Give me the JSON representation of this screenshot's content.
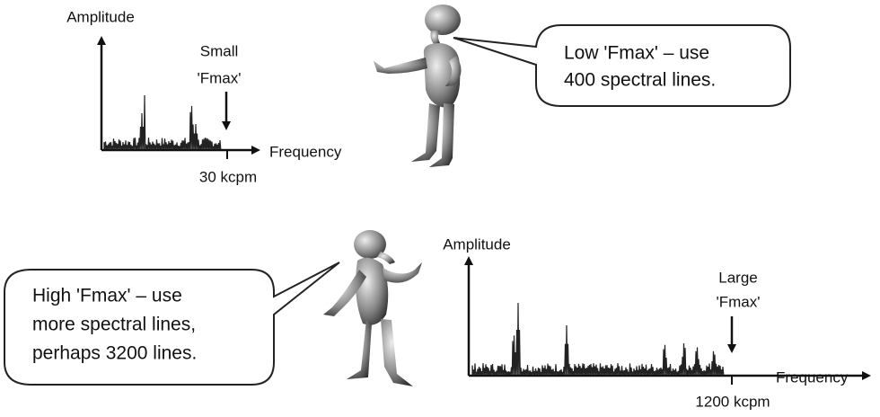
{
  "top": {
    "chart": {
      "y_label": "Amplitude",
      "annotation": [
        "Small",
        "'Fmax'"
      ],
      "x_label": "Frequency",
      "tick": "30 kcpm"
    },
    "speech": [
      "Low 'Fmax' – use",
      "400 spectral lines."
    ]
  },
  "bottom": {
    "chart": {
      "y_label": "Amplitude",
      "annotation": [
        "Large",
        "'Fmax'"
      ],
      "x_label": "Frequency",
      "tick": "1200 kcpm"
    },
    "speech": [
      "High 'Fmax'  – use",
      "more spectral lines,",
      "perhaps 3200 lines."
    ]
  }
}
